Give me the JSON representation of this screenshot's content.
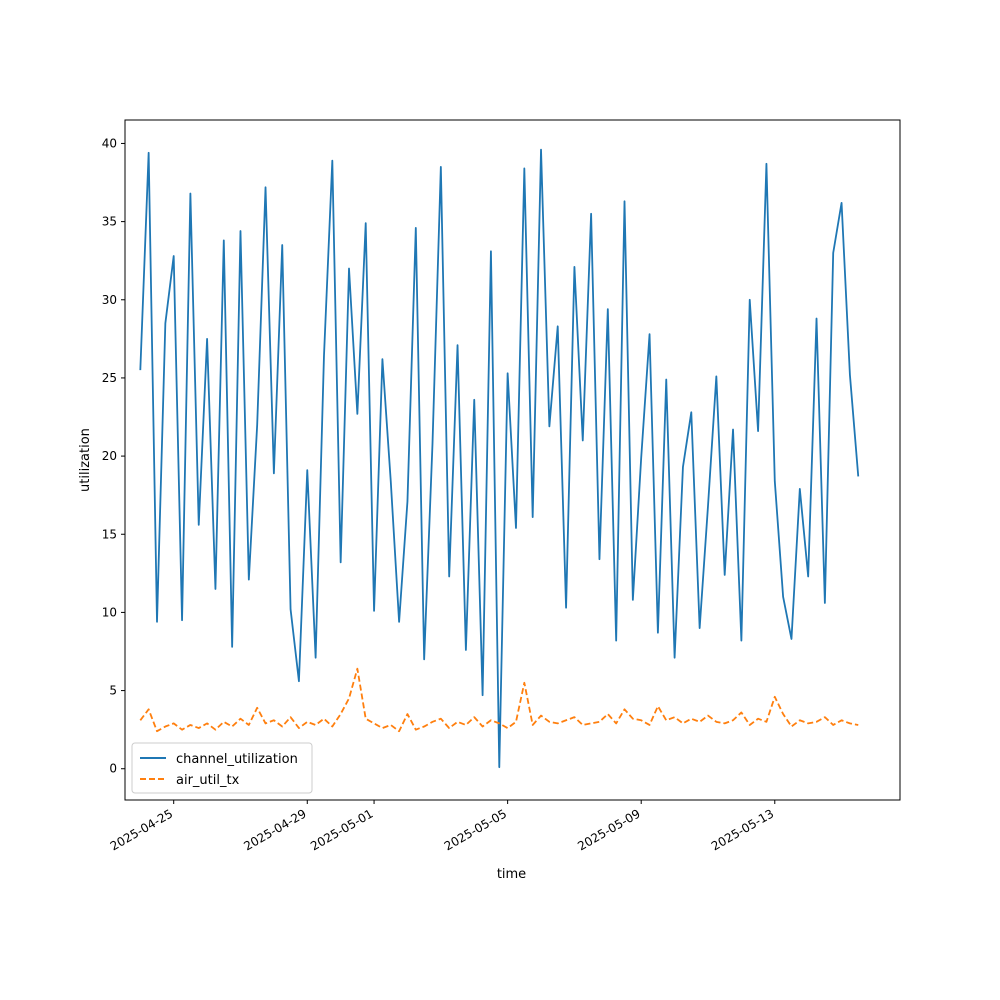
{
  "chart_data": {
    "type": "line",
    "title": "",
    "xlabel": "time",
    "ylabel": "utilization",
    "x_range": [
      "2025-04-23T13:00",
      "2025-05-16T18:00"
    ],
    "ylim": [
      -2,
      41.5
    ],
    "yticks": [
      0,
      5,
      10,
      15,
      20,
      25,
      30,
      35,
      40
    ],
    "xticks": [
      "2025-04-25",
      "2025-04-29",
      "2025-05-01",
      "2025-05-05",
      "2025-05-09",
      "2025-05-13"
    ],
    "grid": false,
    "legend_position": "lower-left",
    "series": [
      {
        "name": "channel_utilization",
        "color": "#1f77b4",
        "style": "solid",
        "x": [
          "2025-04-24T00:00",
          "2025-04-24T06:00",
          "2025-04-24T12:00",
          "2025-04-24T18:00",
          "2025-04-25T00:00",
          "2025-04-25T06:00",
          "2025-04-25T12:00",
          "2025-04-25T18:00",
          "2025-04-26T00:00",
          "2025-04-26T06:00",
          "2025-04-26T12:00",
          "2025-04-26T18:00",
          "2025-04-27T00:00",
          "2025-04-27T06:00",
          "2025-04-27T12:00",
          "2025-04-27T18:00",
          "2025-04-28T00:00",
          "2025-04-28T06:00",
          "2025-04-28T12:00",
          "2025-04-28T18:00",
          "2025-04-29T00:00",
          "2025-04-29T06:00",
          "2025-04-29T12:00",
          "2025-04-29T18:00",
          "2025-04-30T00:00",
          "2025-04-30T06:00",
          "2025-04-30T12:00",
          "2025-04-30T18:00",
          "2025-05-01T00:00",
          "2025-05-01T06:00",
          "2025-05-01T12:00",
          "2025-05-01T18:00",
          "2025-05-02T00:00",
          "2025-05-02T06:00",
          "2025-05-02T12:00",
          "2025-05-02T18:00",
          "2025-05-03T00:00",
          "2025-05-03T06:00",
          "2025-05-03T12:00",
          "2025-05-03T18:00",
          "2025-05-04T00:00",
          "2025-05-04T06:00",
          "2025-05-04T12:00",
          "2025-05-04T18:00",
          "2025-05-05T00:00",
          "2025-05-05T06:00",
          "2025-05-05T12:00",
          "2025-05-05T18:00",
          "2025-05-06T00:00",
          "2025-05-06T06:00",
          "2025-05-06T12:00",
          "2025-05-06T18:00",
          "2025-05-07T00:00",
          "2025-05-07T06:00",
          "2025-05-07T12:00",
          "2025-05-07T18:00",
          "2025-05-08T00:00",
          "2025-05-08T06:00",
          "2025-05-08T12:00",
          "2025-05-08T18:00",
          "2025-05-09T00:00",
          "2025-05-09T06:00",
          "2025-05-09T12:00",
          "2025-05-09T18:00",
          "2025-05-10T00:00",
          "2025-05-10T06:00",
          "2025-05-10T12:00",
          "2025-05-10T18:00",
          "2025-05-11T00:00",
          "2025-05-11T06:00",
          "2025-05-11T12:00",
          "2025-05-11T18:00",
          "2025-05-12T00:00",
          "2025-05-12T06:00",
          "2025-05-12T12:00",
          "2025-05-12T18:00",
          "2025-05-13T00:00",
          "2025-05-13T06:00",
          "2025-05-13T12:00",
          "2025-05-13T18:00",
          "2025-05-14T00:00",
          "2025-05-14T06:00",
          "2025-05-14T12:00",
          "2025-05-14T18:00",
          "2025-05-15T00:00",
          "2025-05-15T06:00",
          "2025-05-15T12:00"
        ],
        "values": [
          25.5,
          39.4,
          9.4,
          28.5,
          32.8,
          9.5,
          36.8,
          15.6,
          27.5,
          11.5,
          33.8,
          7.8,
          34.4,
          12.1,
          22.0,
          37.2,
          18.9,
          33.5,
          10.2,
          5.6,
          19.1,
          7.1,
          26.4,
          38.9,
          13.2,
          32.0,
          22.7,
          34.9,
          10.1,
          26.2,
          18.4,
          9.4,
          17.1,
          34.6,
          7.0,
          20.8,
          38.5,
          12.3,
          27.1,
          7.6,
          23.6,
          4.7,
          33.1,
          0.1,
          25.3,
          15.4,
          38.4,
          16.1,
          39.6,
          21.9,
          28.3,
          10.3,
          32.1,
          21.0,
          35.5,
          13.4,
          29.4,
          8.2,
          36.3,
          10.8,
          19.9,
          27.8,
          8.7,
          24.9,
          7.1,
          19.3,
          22.8,
          9.0,
          16.8,
          25.1,
          12.4,
          21.7,
          8.2,
          30.0,
          21.6,
          38.7,
          18.4,
          11.0,
          8.3,
          17.9,
          12.3,
          28.8,
          10.6,
          33.0,
          36.2,
          25.2,
          18.7
        ]
      },
      {
        "name": "air_util_tx",
        "color": "#ff7f0e",
        "style": "dashed",
        "x": [
          "2025-04-24T00:00",
          "2025-04-24T06:00",
          "2025-04-24T12:00",
          "2025-04-24T18:00",
          "2025-04-25T00:00",
          "2025-04-25T06:00",
          "2025-04-25T12:00",
          "2025-04-25T18:00",
          "2025-04-26T00:00",
          "2025-04-26T06:00",
          "2025-04-26T12:00",
          "2025-04-26T18:00",
          "2025-04-27T00:00",
          "2025-04-27T06:00",
          "2025-04-27T12:00",
          "2025-04-27T18:00",
          "2025-04-28T00:00",
          "2025-04-28T06:00",
          "2025-04-28T12:00",
          "2025-04-28T18:00",
          "2025-04-29T00:00",
          "2025-04-29T06:00",
          "2025-04-29T12:00",
          "2025-04-29T18:00",
          "2025-04-30T00:00",
          "2025-04-30T06:00",
          "2025-04-30T12:00",
          "2025-04-30T18:00",
          "2025-05-01T00:00",
          "2025-05-01T06:00",
          "2025-05-01T12:00",
          "2025-05-01T18:00",
          "2025-05-02T00:00",
          "2025-05-02T06:00",
          "2025-05-02T12:00",
          "2025-05-02T18:00",
          "2025-05-03T00:00",
          "2025-05-03T06:00",
          "2025-05-03T12:00",
          "2025-05-03T18:00",
          "2025-05-04T00:00",
          "2025-05-04T06:00",
          "2025-05-04T12:00",
          "2025-05-04T18:00",
          "2025-05-05T00:00",
          "2025-05-05T06:00",
          "2025-05-05T12:00",
          "2025-05-05T18:00",
          "2025-05-06T00:00",
          "2025-05-06T06:00",
          "2025-05-06T12:00",
          "2025-05-06T18:00",
          "2025-05-07T00:00",
          "2025-05-07T06:00",
          "2025-05-07T12:00",
          "2025-05-07T18:00",
          "2025-05-08T00:00",
          "2025-05-08T06:00",
          "2025-05-08T12:00",
          "2025-05-08T18:00",
          "2025-05-09T00:00",
          "2025-05-09T06:00",
          "2025-05-09T12:00",
          "2025-05-09T18:00",
          "2025-05-10T00:00",
          "2025-05-10T06:00",
          "2025-05-10T12:00",
          "2025-05-10T18:00",
          "2025-05-11T00:00",
          "2025-05-11T06:00",
          "2025-05-11T12:00",
          "2025-05-11T18:00",
          "2025-05-12T00:00",
          "2025-05-12T06:00",
          "2025-05-12T12:00",
          "2025-05-12T18:00",
          "2025-05-13T00:00",
          "2025-05-13T06:00",
          "2025-05-13T12:00",
          "2025-05-13T18:00",
          "2025-05-14T00:00",
          "2025-05-14T06:00",
          "2025-05-14T12:00",
          "2025-05-14T18:00",
          "2025-05-15T00:00",
          "2025-05-15T06:00",
          "2025-05-15T12:00"
        ],
        "values": [
          3.1,
          3.8,
          2.4,
          2.7,
          2.9,
          2.5,
          2.8,
          2.6,
          2.9,
          2.5,
          3.0,
          2.7,
          3.2,
          2.8,
          3.9,
          2.9,
          3.1,
          2.7,
          3.3,
          2.6,
          3.0,
          2.8,
          3.2,
          2.7,
          3.5,
          4.5,
          6.4,
          3.2,
          2.9,
          2.6,
          2.8,
          2.4,
          3.5,
          2.5,
          2.7,
          3.0,
          3.2,
          2.6,
          3.0,
          2.8,
          3.3,
          2.7,
          3.1,
          2.9,
          2.6,
          3.0,
          5.5,
          2.8,
          3.4,
          3.0,
          2.9,
          3.1,
          3.3,
          2.8,
          2.9,
          3.0,
          3.5,
          2.9,
          3.8,
          3.2,
          3.1,
          2.8,
          4.0,
          3.1,
          3.3,
          2.9,
          3.2,
          3.0,
          3.4,
          3.0,
          2.9,
          3.1,
          3.6,
          2.8,
          3.2,
          3.0,
          4.6,
          3.5,
          2.7,
          3.1,
          2.9,
          3.0,
          3.3,
          2.8,
          3.1,
          2.9,
          2.8
        ]
      }
    ]
  }
}
